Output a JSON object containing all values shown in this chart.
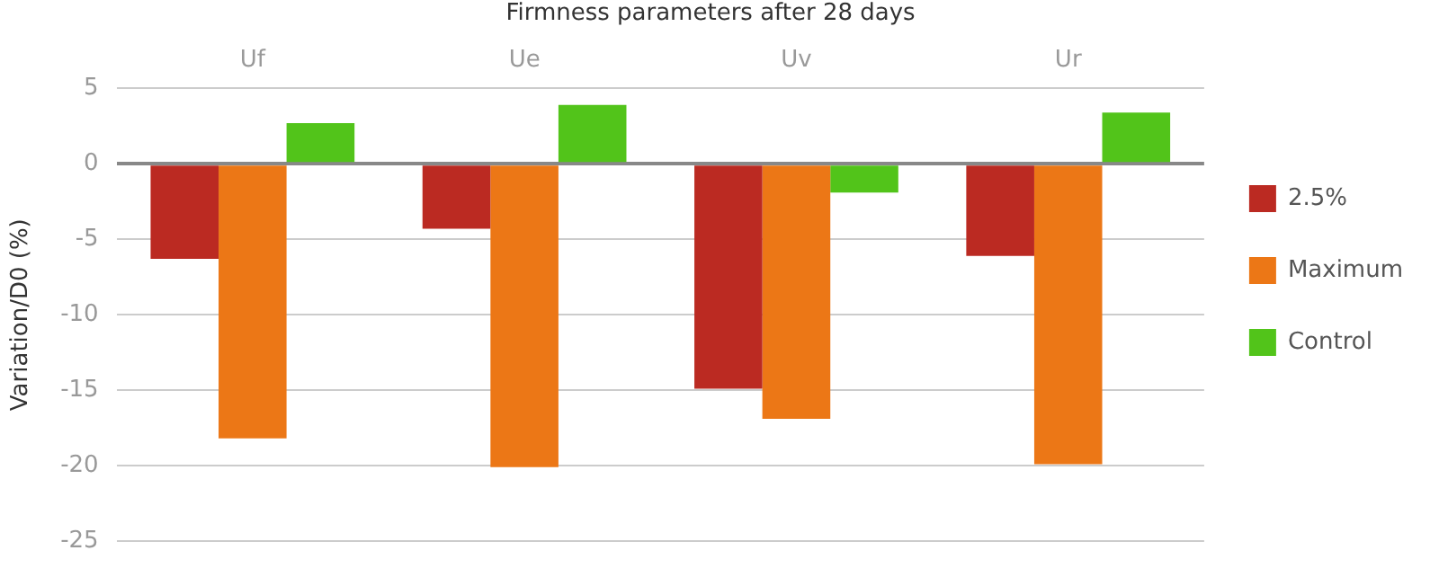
{
  "chart_data": {
    "type": "bar",
    "title": "Firmness parameters after 28 days",
    "ylabel": "Variation/D0 (%)",
    "categories": [
      "Uf",
      "Ue",
      "Uv",
      "Ur"
    ],
    "series": [
      {
        "name": "2.5%",
        "color": "#bb2a22",
        "values": [
          -6.3,
          -4.3,
          -14.9,
          -6.1
        ]
      },
      {
        "name": "Maximum",
        "color": "#ec7716",
        "values": [
          -18.2,
          -20.1,
          -16.9,
          -19.9
        ]
      },
      {
        "name": "Control",
        "color": "#52c41a",
        "values": [
          2.7,
          3.9,
          -1.9,
          3.4
        ]
      }
    ],
    "ylim": [
      -25,
      5
    ],
    "yticks": [
      -25,
      -20,
      -15,
      -10,
      -5,
      0,
      5
    ],
    "grid": "y",
    "legend": "right"
  }
}
